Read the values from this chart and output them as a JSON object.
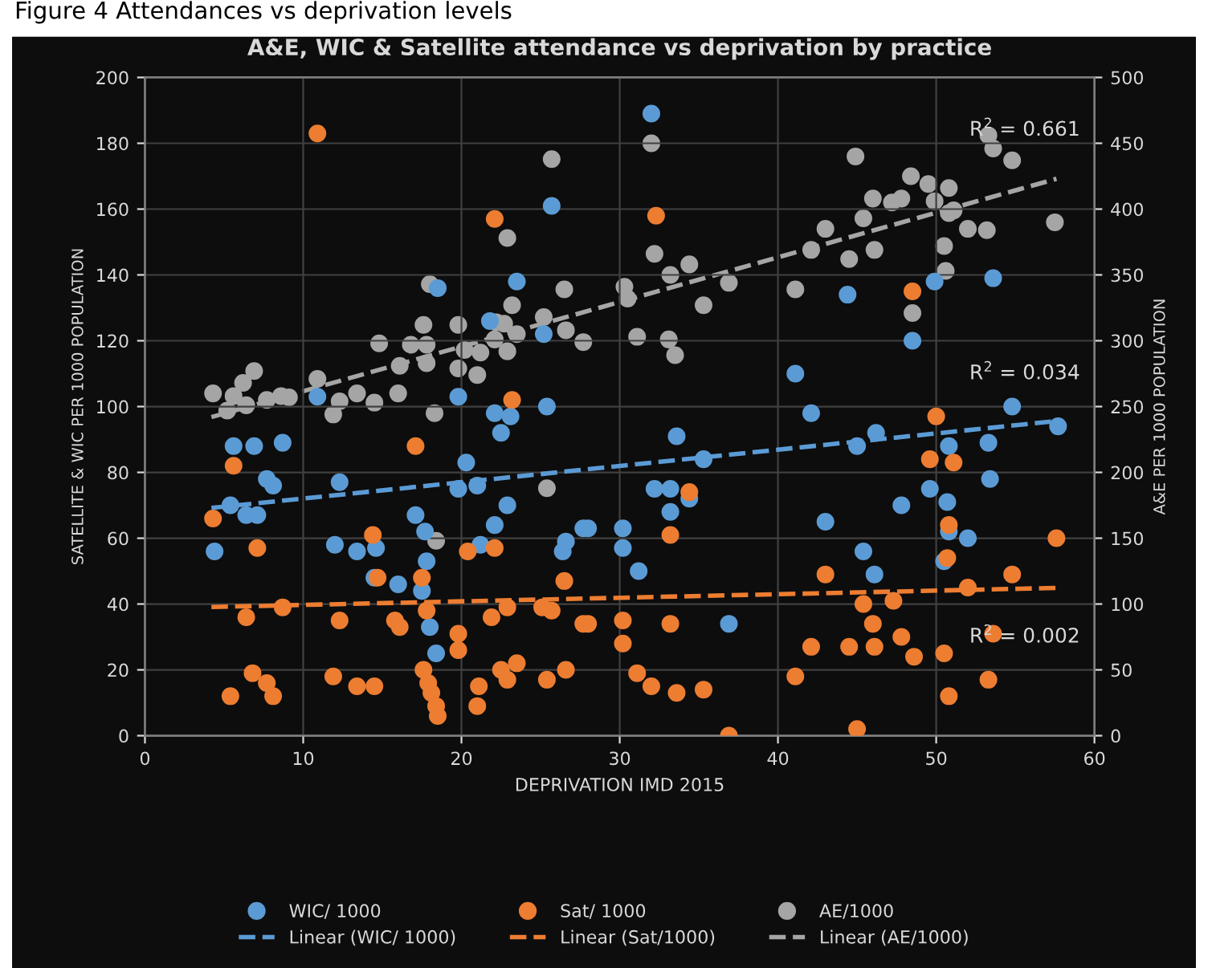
{
  "chart_data": {
    "type": "scatter",
    "title": "A&E, WIC & Satellite attendance vs deprivation by practice",
    "xlabel": "DEPRIVATION IMD 2015",
    "ylabel": "SATELLITE & WIC PER 1000 POPULATION",
    "y2label": "A&E PER 1000 POPULATION",
    "xlim": [
      0,
      60
    ],
    "xticks": [
      0,
      10,
      20,
      30,
      40,
      50,
      60
    ],
    "ylim": [
      0,
      200
    ],
    "yticks": [
      0,
      20,
      40,
      60,
      80,
      100,
      120,
      140,
      160,
      180,
      200
    ],
    "y2lim": [
      0,
      500
    ],
    "y2ticks": [
      0,
      50,
      100,
      150,
      200,
      250,
      300,
      350,
      400,
      450,
      500
    ],
    "grid": true,
    "legend": "bottom",
    "annotations": [
      "Figure 4 Attendances vs deprivation levels",
      "R$^{2}$ = 0.661",
      "R$^{2}$ = 0.034",
      "R$^{2}$ = 0.002"
    ],
    "series": [
      {
        "name": "WIC/ 1000",
        "marker": "circle",
        "color": "#5b9bd5",
        "x": [
          18.5,
          23.5,
          25.7,
          21.8,
          25.2,
          32.0,
          44.4,
          48.5,
          49.9,
          53.6,
          41.1,
          4.4,
          5.6,
          6.9,
          8.7,
          7.7,
          8.1,
          5.4,
          6.4,
          7.1,
          10.9,
          12.3,
          12.0,
          13.4,
          14.6,
          14.5,
          16.0,
          17.1,
          17.7,
          17.8,
          17.5,
          18.0,
          18.4,
          19.8,
          20.3,
          19.8,
          21.0,
          21.2,
          22.1,
          22.9,
          22.1,
          23.1,
          22.5,
          25.4,
          27.7,
          26.4,
          26.6,
          42.1,
          33.6,
          35.3,
          32.2,
          33.2,
          33.2,
          34.4,
          28.0,
          30.2,
          30.2,
          31.2,
          36.9,
          43.0,
          45.0,
          46.2,
          45.4,
          46.1,
          47.8,
          49.6,
          50.8,
          50.7,
          50.8,
          50.5,
          52.0,
          53.3,
          53.4,
          54.8,
          57.7
        ],
        "values": [
          136,
          138,
          161,
          126,
          122,
          189,
          134,
          120,
          138,
          139,
          110,
          56,
          88,
          88,
          89,
          78,
          76,
          70,
          67,
          67,
          103,
          77,
          58,
          56,
          57,
          48,
          46,
          67,
          62,
          53,
          44,
          33,
          25,
          103,
          83,
          75,
          76,
          58,
          64,
          70,
          98,
          97,
          92,
          100,
          63,
          56,
          59,
          98,
          91,
          84,
          75,
          75,
          68,
          72,
          63,
          63,
          57,
          50,
          34,
          65,
          88,
          92,
          56,
          49,
          70,
          75,
          88,
          71,
          62,
          53,
          60,
          89,
          78,
          100,
          94
        ]
      },
      {
        "name": "Sat/ 1000",
        "marker": "circle",
        "color": "#ed7d31",
        "x": [
          10.9,
          22.1,
          32.3,
          48.5,
          4.3,
          5.6,
          7.1,
          6.4,
          8.7,
          5.4,
          6.8,
          7.7,
          8.1,
          12.3,
          11.9,
          13.4,
          14.5,
          14.4,
          14.7,
          15.8,
          16.1,
          17.1,
          17.5,
          17.8,
          17.6,
          17.9,
          18.1,
          18.4,
          18.5,
          19.8,
          19.8,
          20.4,
          22.1,
          23.2,
          21.9,
          22.9,
          21.1,
          21.0,
          22.5,
          22.9,
          23.5,
          25.4,
          26.6,
          25.1,
          25.7,
          26.5,
          27.7,
          28.0,
          30.2,
          30.2,
          31.1,
          32.0,
          33.6,
          35.3,
          36.9,
          33.2,
          33.2,
          34.4,
          43.0,
          41.1,
          42.1,
          44.5,
          45.0,
          45.4,
          46.1,
          46.0,
          47.3,
          47.8,
          48.6,
          50.5,
          50.8,
          49.6,
          50.0,
          51.1,
          50.8,
          50.7,
          52.0,
          53.3,
          53.6,
          54.8,
          57.6
        ],
        "values": [
          183,
          157,
          158,
          135,
          66,
          82,
          57,
          36,
          39,
          12,
          19,
          16,
          12,
          35,
          18,
          15,
          15,
          61,
          48,
          35,
          33,
          88,
          48,
          38,
          20,
          16,
          13,
          9,
          6,
          31,
          26,
          56,
          57,
          102,
          36,
          39,
          15,
          9,
          20,
          17,
          22,
          17,
          20,
          39,
          38,
          47,
          34,
          34,
          35,
          28,
          19,
          15,
          13,
          14,
          0,
          61,
          34,
          74,
          49,
          18,
          27,
          27,
          2,
          40,
          27,
          34,
          41,
          30,
          24,
          25,
          12,
          84,
          97,
          83,
          64,
          54,
          45,
          17,
          31,
          49,
          60
        ]
      },
      {
        "name": "AE/1000",
        "marker": "circle",
        "color": "#a5a5a5",
        "axis": "y2",
        "x": [
          25.7,
          22.9,
          18.0,
          26.5,
          23.2,
          17.6,
          19.8,
          22.2,
          22.7,
          25.2,
          14.8,
          16.8,
          17.8,
          22.1,
          23.5,
          22.9,
          26.6,
          27.7,
          20.2,
          21.2,
          19.8,
          21.0,
          17.8,
          16.1,
          6.9,
          6.2,
          10.9,
          32.0,
          44.9,
          48.4,
          49.5,
          50.8,
          53.3,
          53.6,
          54.8,
          46.0,
          47.2,
          47.8,
          49.9,
          50.8,
          51.1,
          45.4,
          43.0,
          42.1,
          44.5,
          46.1,
          50.5,
          50.6,
          52.0,
          53.2,
          57.5,
          41.1,
          48.5,
          32.2,
          33.2,
          34.4,
          30.3,
          30.5,
          36.9,
          35.3,
          31.1,
          33.1,
          33.5,
          4.3,
          5.6,
          5.2,
          6.4,
          7.7,
          8.6,
          9.1,
          11.9,
          12.3,
          13.4,
          14.5,
          16.0,
          18.3,
          25.4,
          18.4
        ],
        "values": [
          438,
          378,
          343,
          339,
          327,
          312,
          312,
          314,
          313,
          318,
          298,
          297,
          297,
          301,
          305,
          292,
          308,
          299,
          293,
          291,
          279,
          274,
          283,
          281,
          277,
          268,
          271,
          450,
          440,
          425,
          419,
          416,
          456,
          446,
          437,
          408,
          405,
          408,
          406,
          397,
          399,
          393,
          385,
          369,
          362,
          369,
          372,
          353,
          385,
          384,
          390,
          339,
          321,
          366,
          350,
          358,
          341,
          332,
          344,
          327,
          303,
          301,
          289,
          260,
          258,
          247,
          251,
          255,
          258,
          257,
          244,
          254,
          260,
          253,
          260,
          245,
          188,
          148
        ]
      },
      {
        "name": "Linear (WIC/ 1000)",
        "type": "line",
        "line_style": "dashed",
        "color": "#5b9bd5",
        "x": [
          4.2,
          57.6
        ],
        "values": [
          69.2,
          95.6
        ]
      },
      {
        "name": "Linear (Sat/1000)",
        "type": "line",
        "line_style": "dashed",
        "color": "#ed7d31",
        "x": [
          4.2,
          57.6
        ],
        "values": [
          39.1,
          44.9
        ]
      },
      {
        "name": "Linear (AE/1000)",
        "type": "line",
        "line_style": "dashed",
        "color": "#a5a5a5",
        "axis": "y2",
        "x": [
          4.2,
          57.6
        ],
        "values": [
          242,
          423
        ]
      }
    ]
  }
}
